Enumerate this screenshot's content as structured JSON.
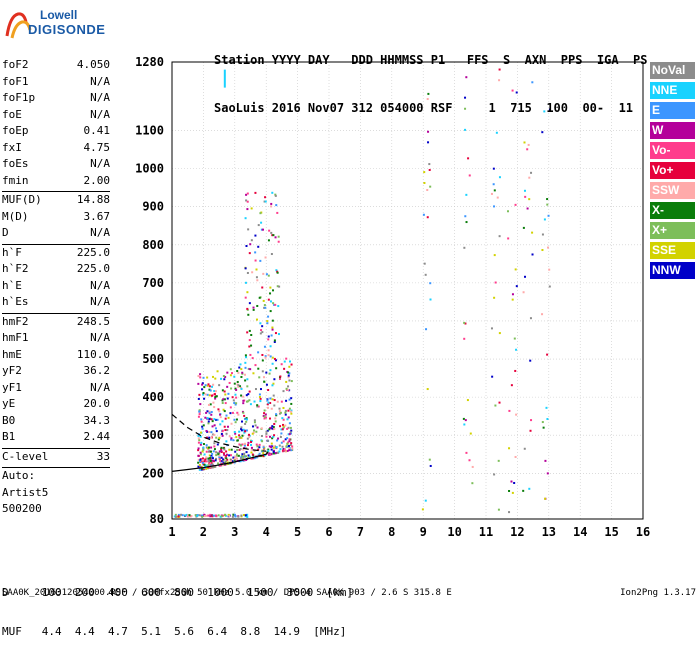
{
  "logo": {
    "line1": "Lowell",
    "line2": "DIGISONDE"
  },
  "header": {
    "line1": "Station YYYY DAY   DDD HHMMSS P1   FFS  S  AXN  PPS  IGA  PS",
    "line2": "SaoLuis 2016 Nov07 312 054000 RSF     1  715  100  00-  11"
  },
  "params": {
    "group1": [
      {
        "k": "foF2",
        "v": "4.050"
      },
      {
        "k": "foF1",
        "v": "N/A"
      },
      {
        "k": "foF1p",
        "v": "N/A"
      },
      {
        "k": "foE",
        "v": "N/A"
      },
      {
        "k": "foEp",
        "v": "0.41"
      },
      {
        "k": "fxI",
        "v": "4.75"
      },
      {
        "k": "foEs",
        "v": "N/A"
      },
      {
        "k": "fmin",
        "v": "2.00"
      }
    ],
    "group2": [
      {
        "k": "MUF(D)",
        "v": "14.88"
      },
      {
        "k": "M(D)",
        "v": "3.67"
      },
      {
        "k": "D",
        "v": "N/A"
      }
    ],
    "group3": [
      {
        "k": "h`F",
        "v": "225.0"
      },
      {
        "k": "h`F2",
        "v": "225.0"
      },
      {
        "k": "h`E",
        "v": "N/A"
      },
      {
        "k": "h`Es",
        "v": "N/A"
      }
    ],
    "group4": [
      {
        "k": "hmF2",
        "v": "248.5"
      },
      {
        "k": "hmF1",
        "v": "N/A"
      },
      {
        "k": "hmE",
        "v": "110.0"
      },
      {
        "k": "yF2",
        "v": "36.2"
      },
      {
        "k": "yF1",
        "v": "N/A"
      },
      {
        "k": "yE",
        "v": "20.0"
      },
      {
        "k": "B0",
        "v": "34.3"
      },
      {
        "k": "B1",
        "v": "2.44"
      }
    ],
    "group5": [
      {
        "k": "C-level",
        "v": "33"
      }
    ],
    "auto": [
      "Auto:",
      "Artist5",
      "500200"
    ]
  },
  "legend": [
    {
      "label": "NoVal",
      "color": "#8c8c8c"
    },
    {
      "label": "NNE",
      "color": "#19d2ff"
    },
    {
      "label": "E",
      "color": "#3c96ff"
    },
    {
      "label": "W",
      "color": "#b4009a"
    },
    {
      "label": "Vo-",
      "color": "#ff3c8c"
    },
    {
      "label": "Vo+",
      "color": "#e6003c"
    },
    {
      "label": "SSW",
      "color": "#ffaaaa"
    },
    {
      "label": "X-",
      "color": "#0a7d0a"
    },
    {
      "label": "X+",
      "color": "#7dbe5a"
    },
    {
      "label": "SSE",
      "color": "#d2d200"
    },
    {
      "label": "NNW",
      "color": "#0000c8"
    }
  ],
  "footer": {
    "dline": "D     100  200  400  600  800  1000  1500  3000  [km]",
    "mline": "MUF   4.4  4.4  4.7  5.1  5.6  6.4  8.8  14.9  [MHz]",
    "bottom": "SAA0K_2016312054000.RSF / 300fx256h 50 kHz 5.0 km / DPS-4 SAA0K 903 / 2.6 S 315.8 E",
    "version": "Ion2Png 1.3.17"
  },
  "chart_data": {
    "type": "scatter",
    "xlim": [
      1,
      16
    ],
    "ylim": [
      80,
      1280
    ],
    "x_ticks": [
      1,
      2,
      3,
      4,
      5,
      6,
      7,
      8,
      9,
      10,
      11,
      12,
      13,
      14,
      15,
      16
    ],
    "y_ticks": [
      80,
      200,
      300,
      400,
      500,
      600,
      700,
      800,
      900,
      1000,
      1100,
      1280
    ],
    "grid": true,
    "legend_position": "right",
    "profile_curve": {
      "x": [
        1.0,
        1.5,
        2.0,
        2.5,
        3.0,
        3.5,
        4.0,
        4.05
      ],
      "y": [
        205,
        210,
        215,
        222,
        230,
        240,
        250,
        255
      ]
    },
    "dashed_curve": {
      "x": [
        1.0,
        1.5,
        2.0,
        2.5,
        3.0,
        3.5,
        4.0
      ],
      "y": [
        355,
        320,
        295,
        280,
        270,
        262,
        258
      ]
    }
  }
}
